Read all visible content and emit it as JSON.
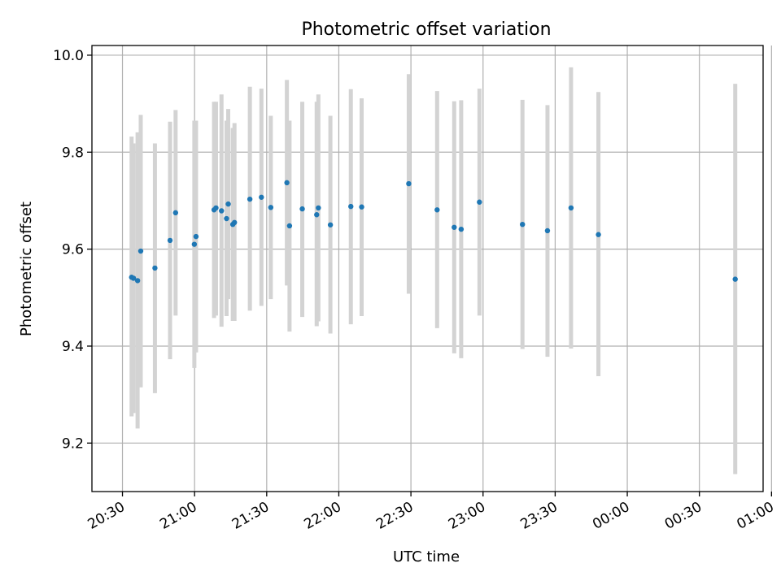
{
  "chart_data": {
    "type": "scatter",
    "title": "Photometric offset variation",
    "xlabel": "UTC time",
    "ylabel": "Photometric offset",
    "x_unit": "minutes after 20:00 UTC",
    "xlim": [
      17.3,
      296.5
    ],
    "ylim": [
      9.1,
      10.02
    ],
    "grid": true,
    "x_ticks": [
      {
        "value": 30,
        "label": "20:30"
      },
      {
        "value": 60,
        "label": "21:00"
      },
      {
        "value": 90,
        "label": "21:30"
      },
      {
        "value": 120,
        "label": "22:00"
      },
      {
        "value": 150,
        "label": "22:30"
      },
      {
        "value": 180,
        "label": "23:00"
      },
      {
        "value": 210,
        "label": "23:30"
      },
      {
        "value": 240,
        "label": "00:00"
      },
      {
        "value": 270,
        "label": "00:30"
      },
      {
        "value": 300,
        "label": "01:00"
      }
    ],
    "y_ticks": [
      {
        "value": 9.2,
        "label": "9.2"
      },
      {
        "value": 9.4,
        "label": "9.4"
      },
      {
        "value": 9.6,
        "label": "9.6"
      },
      {
        "value": 9.8,
        "label": "9.8"
      },
      {
        "value": 10.0,
        "label": "10.0"
      }
    ],
    "series": [
      {
        "color": "#1f77b4",
        "errorbar_color": "#d3d3d3",
        "points": [
          {
            "x": 33.8,
            "y": 9.542,
            "ylow": 9.255,
            "yhigh": 9.832
          },
          {
            "x": 34.6,
            "y": 9.54,
            "ylow": 9.262,
            "yhigh": 9.818
          },
          {
            "x": 36.3,
            "y": 9.535,
            "ylow": 9.23,
            "yhigh": 9.841
          },
          {
            "x": 37.6,
            "y": 9.596,
            "ylow": 9.315,
            "yhigh": 9.877
          },
          {
            "x": 43.5,
            "y": 9.561,
            "ylow": 9.303,
            "yhigh": 9.818
          },
          {
            "x": 49.8,
            "y": 9.618,
            "ylow": 9.373,
            "yhigh": 9.863
          },
          {
            "x": 52.1,
            "y": 9.675,
            "ylow": 9.463,
            "yhigh": 9.887
          },
          {
            "x": 59.9,
            "y": 9.61,
            "ylow": 9.355,
            "yhigh": 9.865
          },
          {
            "x": 60.6,
            "y": 9.626,
            "ylow": 9.387,
            "yhigh": 9.865
          },
          {
            "x": 68.1,
            "y": 9.681,
            "ylow": 9.458,
            "yhigh": 9.904
          },
          {
            "x": 68.9,
            "y": 9.685,
            "ylow": 9.463,
            "yhigh": 9.904
          },
          {
            "x": 71.2,
            "y": 9.679,
            "ylow": 9.44,
            "yhigh": 9.919
          },
          {
            "x": 73.3,
            "y": 9.663,
            "ylow": 9.462,
            "yhigh": 9.865
          },
          {
            "x": 74.0,
            "y": 9.693,
            "ylow": 9.497,
            "yhigh": 9.889
          },
          {
            "x": 75.9,
            "y": 9.651,
            "ylow": 9.452,
            "yhigh": 9.85
          },
          {
            "x": 76.6,
            "y": 9.655,
            "ylow": 9.452,
            "yhigh": 9.86
          },
          {
            "x": 83.0,
            "y": 9.703,
            "ylow": 9.473,
            "yhigh": 9.935
          },
          {
            "x": 87.8,
            "y": 9.707,
            "ylow": 9.483,
            "yhigh": 9.931
          },
          {
            "x": 91.7,
            "y": 9.686,
            "ylow": 9.497,
            "yhigh": 9.875
          },
          {
            "x": 98.4,
            "y": 9.737,
            "ylow": 9.525,
            "yhigh": 9.949
          },
          {
            "x": 99.5,
            "y": 9.648,
            "ylow": 9.43,
            "yhigh": 9.865
          },
          {
            "x": 104.8,
            "y": 9.683,
            "ylow": 9.46,
            "yhigh": 9.904
          },
          {
            "x": 110.8,
            "y": 9.671,
            "ylow": 9.441,
            "yhigh": 9.904
          },
          {
            "x": 111.5,
            "y": 9.685,
            "ylow": 9.451,
            "yhigh": 9.919
          },
          {
            "x": 116.5,
            "y": 9.65,
            "ylow": 9.426,
            "yhigh": 9.875
          },
          {
            "x": 125.0,
            "y": 9.688,
            "ylow": 9.445,
            "yhigh": 9.93
          },
          {
            "x": 129.5,
            "y": 9.687,
            "ylow": 9.462,
            "yhigh": 9.911
          },
          {
            "x": 149.1,
            "y": 9.735,
            "ylow": 9.508,
            "yhigh": 9.961
          },
          {
            "x": 160.9,
            "y": 9.681,
            "ylow": 9.437,
            "yhigh": 9.926
          },
          {
            "x": 168.0,
            "y": 9.645,
            "ylow": 9.385,
            "yhigh": 9.905
          },
          {
            "x": 170.9,
            "y": 9.641,
            "ylow": 9.375,
            "yhigh": 9.907
          },
          {
            "x": 178.5,
            "y": 9.697,
            "ylow": 9.463,
            "yhigh": 9.931
          },
          {
            "x": 196.4,
            "y": 9.651,
            "ylow": 9.394,
            "yhigh": 9.908
          },
          {
            "x": 206.8,
            "y": 9.638,
            "ylow": 9.378,
            "yhigh": 9.897
          },
          {
            "x": 216.6,
            "y": 9.685,
            "ylow": 9.395,
            "yhigh": 9.975
          },
          {
            "x": 228.0,
            "y": 9.63,
            "ylow": 9.338,
            "yhigh": 9.924
          },
          {
            "x": 284.9,
            "y": 9.538,
            "ylow": 9.136,
            "yhigh": 9.941
          }
        ]
      }
    ]
  }
}
